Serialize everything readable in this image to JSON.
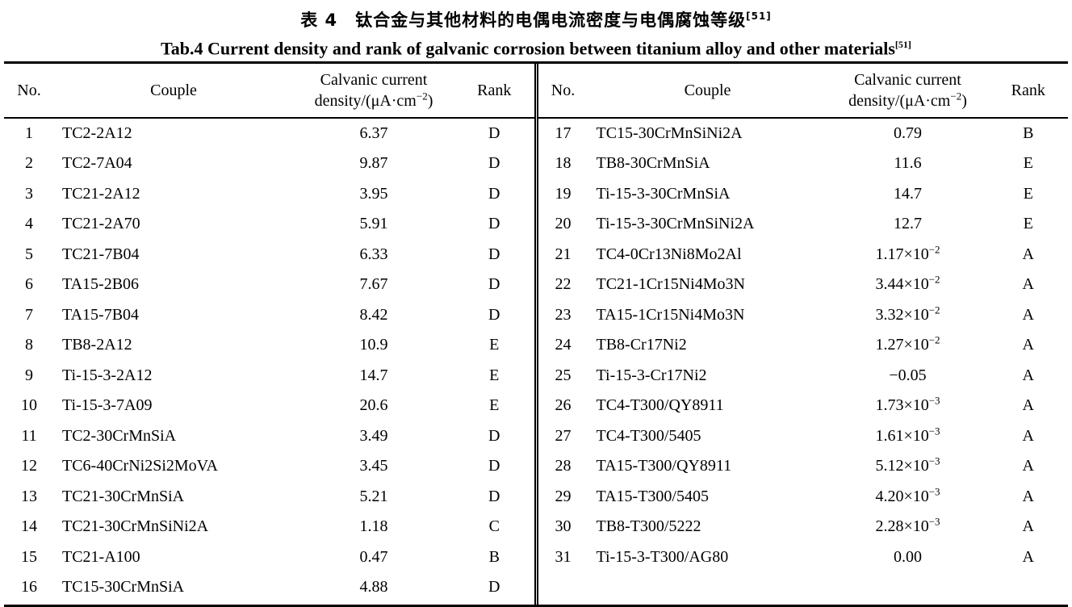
{
  "page": {
    "title_zh": "表 4　钛合金与其他材料的电偶电流密度与电偶腐蚀等级",
    "title_zh_ref": "[51]",
    "title_en": "Tab.4 Current density and rank of galvanic corrosion between titanium alloy and other materials",
    "title_en_ref": "[51]"
  },
  "table": {
    "headers": {
      "no": "No.",
      "couple": "Couple",
      "density_line1": "Calvanic current",
      "density_line2_pre": "density/(μA·cm",
      "density_line2_sup": "−2",
      "density_line2_post": ")",
      "rank": "Rank"
    },
    "left_rows": [
      {
        "no": "1",
        "couple": "TC2-2A12",
        "density": "6.37",
        "density_sup": "",
        "rank": "D"
      },
      {
        "no": "2",
        "couple": "TC2-7A04",
        "density": "9.87",
        "density_sup": "",
        "rank": "D"
      },
      {
        "no": "3",
        "couple": "TC21-2A12",
        "density": "3.95",
        "density_sup": "",
        "rank": "D"
      },
      {
        "no": "4",
        "couple": "TC21-2A70",
        "density": "5.91",
        "density_sup": "",
        "rank": "D"
      },
      {
        "no": "5",
        "couple": "TC21-7B04",
        "density": "6.33",
        "density_sup": "",
        "rank": "D"
      },
      {
        "no": "6",
        "couple": "TA15-2B06",
        "density": "7.67",
        "density_sup": "",
        "rank": "D"
      },
      {
        "no": "7",
        "couple": "TA15-7B04",
        "density": "8.42",
        "density_sup": "",
        "rank": "D"
      },
      {
        "no": "8",
        "couple": "TB8-2A12",
        "density": "10.9",
        "density_sup": "",
        "rank": "E"
      },
      {
        "no": "9",
        "couple": "Ti-15-3-2A12",
        "density": "14.7",
        "density_sup": "",
        "rank": "E"
      },
      {
        "no": "10",
        "couple": "Ti-15-3-7A09",
        "density": "20.6",
        "density_sup": "",
        "rank": "E"
      },
      {
        "no": "11",
        "couple": "TC2-30CrMnSiA",
        "density": "3.49",
        "density_sup": "",
        "rank": "D"
      },
      {
        "no": "12",
        "couple": "TC6-40CrNi2Si2MoVA",
        "density": "3.45",
        "density_sup": "",
        "rank": "D"
      },
      {
        "no": "13",
        "couple": "TC21-30CrMnSiA",
        "density": "5.21",
        "density_sup": "",
        "rank": "D"
      },
      {
        "no": "14",
        "couple": "TC21-30CrMnSiNi2A",
        "density": "1.18",
        "density_sup": "",
        "rank": "C"
      },
      {
        "no": "15",
        "couple": "TC21-A100",
        "density": "0.47",
        "density_sup": "",
        "rank": "B"
      },
      {
        "no": "16",
        "couple": "TC15-30CrMnSiA",
        "density": "4.88",
        "density_sup": "",
        "rank": "D"
      }
    ],
    "right_rows": [
      {
        "no": "17",
        "couple": "TC15-30CrMnSiNi2A",
        "density": "0.79",
        "density_sup": "",
        "rank": "B"
      },
      {
        "no": "18",
        "couple": "TB8-30CrMnSiA",
        "density": "11.6",
        "density_sup": "",
        "rank": "E"
      },
      {
        "no": "19",
        "couple": "Ti-15-3-30CrMnSiA",
        "density": "14.7",
        "density_sup": "",
        "rank": "E"
      },
      {
        "no": "20",
        "couple": "Ti-15-3-30CrMnSiNi2A",
        "density": "12.7",
        "density_sup": "",
        "rank": "E"
      },
      {
        "no": "21",
        "couple": "TC4-0Cr13Ni8Mo2Al",
        "density": "1.17×10",
        "density_sup": "−2",
        "rank": "A"
      },
      {
        "no": "22",
        "couple": "TC21-1Cr15Ni4Mo3N",
        "density": "3.44×10",
        "density_sup": "−2",
        "rank": "A"
      },
      {
        "no": "23",
        "couple": "TA15-1Cr15Ni4Mo3N",
        "density": "3.32×10",
        "density_sup": "−2",
        "rank": "A"
      },
      {
        "no": "24",
        "couple": "TB8-Cr17Ni2",
        "density": "1.27×10",
        "density_sup": "−2",
        "rank": "A"
      },
      {
        "no": "25",
        "couple": "Ti-15-3-Cr17Ni2",
        "density": "−0.05",
        "density_sup": "",
        "rank": "A"
      },
      {
        "no": "26",
        "couple": "TC4-T300/QY8911",
        "density": "1.73×10",
        "density_sup": "−3",
        "rank": "A"
      },
      {
        "no": "27",
        "couple": "TC4-T300/5405",
        "density": "1.61×10",
        "density_sup": "−3",
        "rank": "A"
      },
      {
        "no": "28",
        "couple": "TA15-T300/QY8911",
        "density": "5.12×10",
        "density_sup": "−3",
        "rank": "A"
      },
      {
        "no": "29",
        "couple": "TA15-T300/5405",
        "density": "4.20×10",
        "density_sup": "−3",
        "rank": "A"
      },
      {
        "no": "30",
        "couple": "TB8-T300/5222",
        "density": "2.28×10",
        "density_sup": "−3",
        "rank": "A"
      },
      {
        "no": "31",
        "couple": "Ti-15-3-T300/AG80",
        "density": "0.00",
        "density_sup": "",
        "rank": "A"
      }
    ]
  }
}
